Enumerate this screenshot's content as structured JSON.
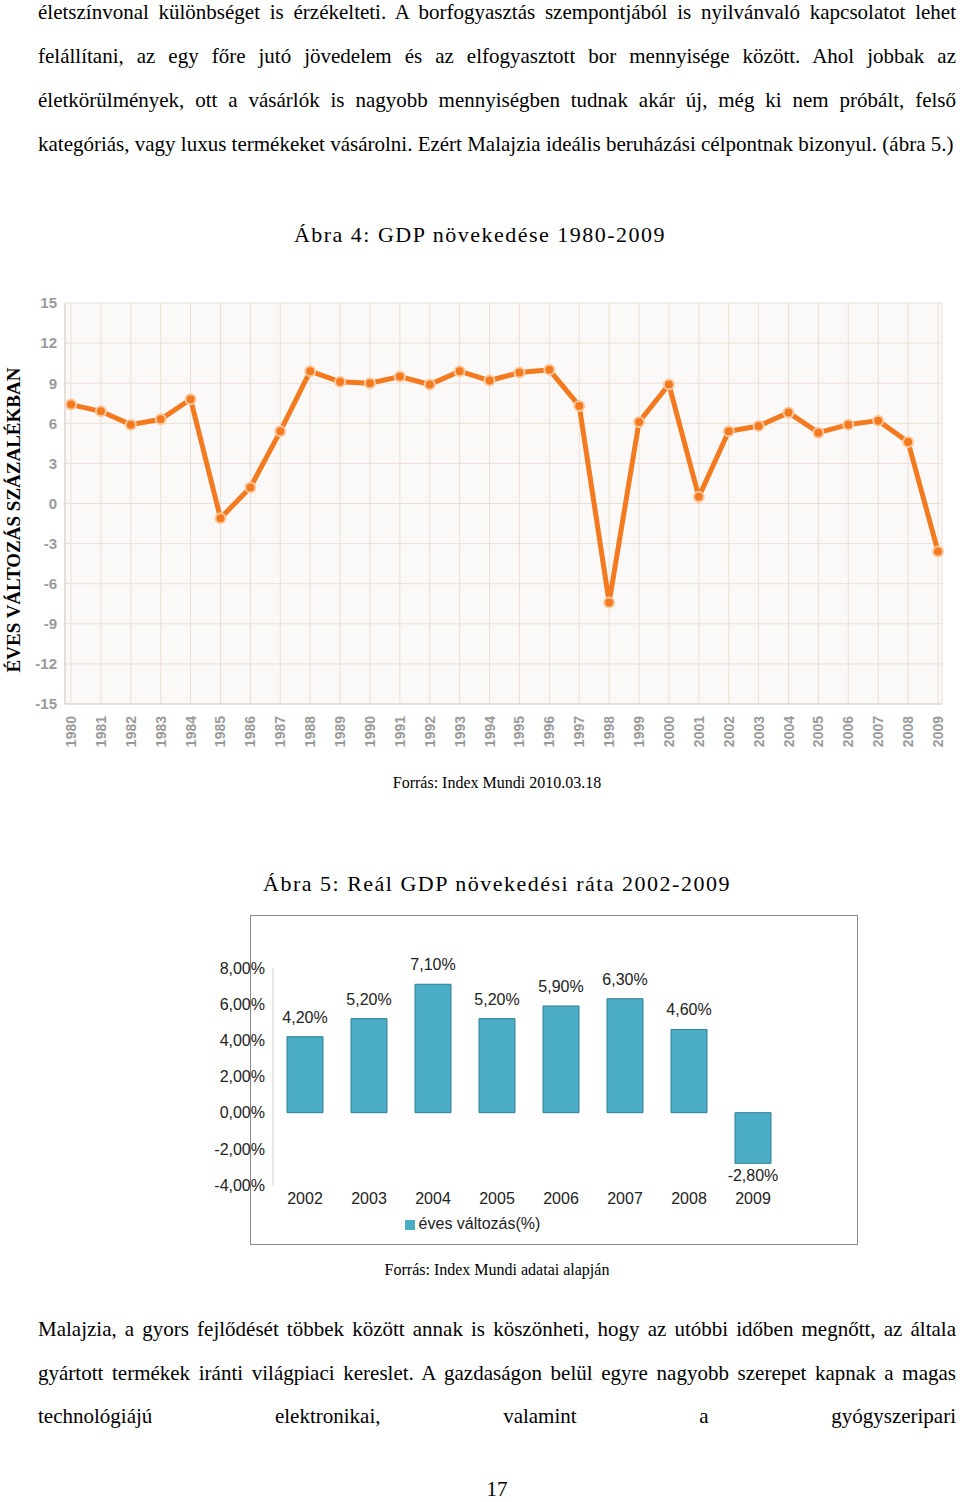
{
  "document": {
    "paragraphs": [
      "életszínvonal különbséget is érzékelteti. A borfogyasztás szempontjából is nyilvánvaló kapcsolatot lehet felállítani, az egy főre jutó jövedelem és az elfogyasztott bor mennyisége között. Ahol jobbak az életkörülmények, ott a vásárlók is nagyobb mennyiségben tudnak akár új, még ki nem próbált, felső kategóriás, vagy luxus termékeket vásárolni. Ezért Malajzia ideális beruházási célpontnak bizonyul. (ábra 5.)",
      "Malajzia, a gyors fejlődését többek között annak is köszönheti, hogy az utóbbi időben megnőtt, az általa gyártott termékek iránti világpiaci kereslet. A gazdaságon belül egyre nagyobb szerepet kapnak a magas technológiájú elektronikai, valamint a gyógyszeripari"
    ],
    "page_number": 17
  },
  "chart_data": [
    {
      "type": "line",
      "title": "Ábra 4: GDP növekedése 1980-2009",
      "y_label": "ÉVES VÁLTOZÁS SZÁZALÉKBAN",
      "annotations": [
        "Forrás: Index Mundi 2010.03.18"
      ],
      "categories": [
        "1980",
        "1981",
        "1982",
        "1983",
        "1984",
        "1985",
        "1986",
        "1987",
        "1988",
        "1989",
        "1990",
        "1991",
        "1992",
        "1993",
        "1994",
        "1995",
        "1996",
        "1997",
        "1998",
        "1999",
        "2000",
        "2001",
        "2002",
        "2003",
        "2004",
        "2005",
        "2006",
        "2007",
        "2008",
        "2009"
      ],
      "values": [
        7.4,
        6.9,
        5.9,
        6.3,
        7.8,
        -1.1,
        1.2,
        5.4,
        9.9,
        9.1,
        9.0,
        9.5,
        8.9,
        9.9,
        9.2,
        9.8,
        10.0,
        7.3,
        -7.4,
        6.1,
        8.9,
        0.5,
        5.4,
        5.8,
        6.8,
        5.3,
        5.9,
        6.2,
        4.6,
        -3.6
      ],
      "color": "#f47a20",
      "marker": "circle",
      "ylim": [
        -15,
        15
      ],
      "yticks": [
        -15,
        -12,
        -9,
        -6,
        -3,
        0,
        3,
        6,
        9,
        12,
        15
      ],
      "grid": true
    },
    {
      "type": "bar",
      "title": "Ábra 5: Reál GDP növekedési ráta 2002-2009",
      "annotations": [
        "Forrás: Index Mundi adatai alapján"
      ],
      "categories": [
        "2002",
        "2003",
        "2004",
        "2005",
        "2006",
        "2007",
        "2008",
        "2009"
      ],
      "series": [
        {
          "name": "éves változás(%)",
          "color": "#4bacc6",
          "values": [
            4.2,
            5.2,
            7.1,
            5.2,
            5.9,
            6.3,
            4.6,
            -2.8
          ],
          "value_labels": [
            "4,20%",
            "5,20%",
            "7,10%",
            "5,20%",
            "5,90%",
            "6,30%",
            "4,60%",
            "-2,80%"
          ]
        }
      ],
      "ylim": [
        -4,
        8
      ],
      "yticks": [
        {
          "value": -4,
          "label": "-4,00%"
        },
        {
          "value": -2,
          "label": "-2,00%"
        },
        {
          "value": 0,
          "label": "0,00%"
        },
        {
          "value": 2,
          "label": "2,00%"
        },
        {
          "value": 4,
          "label": "4,00%"
        },
        {
          "value": 6,
          "label": "6,00%"
        },
        {
          "value": 8,
          "label": "8,00%"
        }
      ],
      "grid": false,
      "legend": "bottom",
      "data_labels": true
    }
  ]
}
